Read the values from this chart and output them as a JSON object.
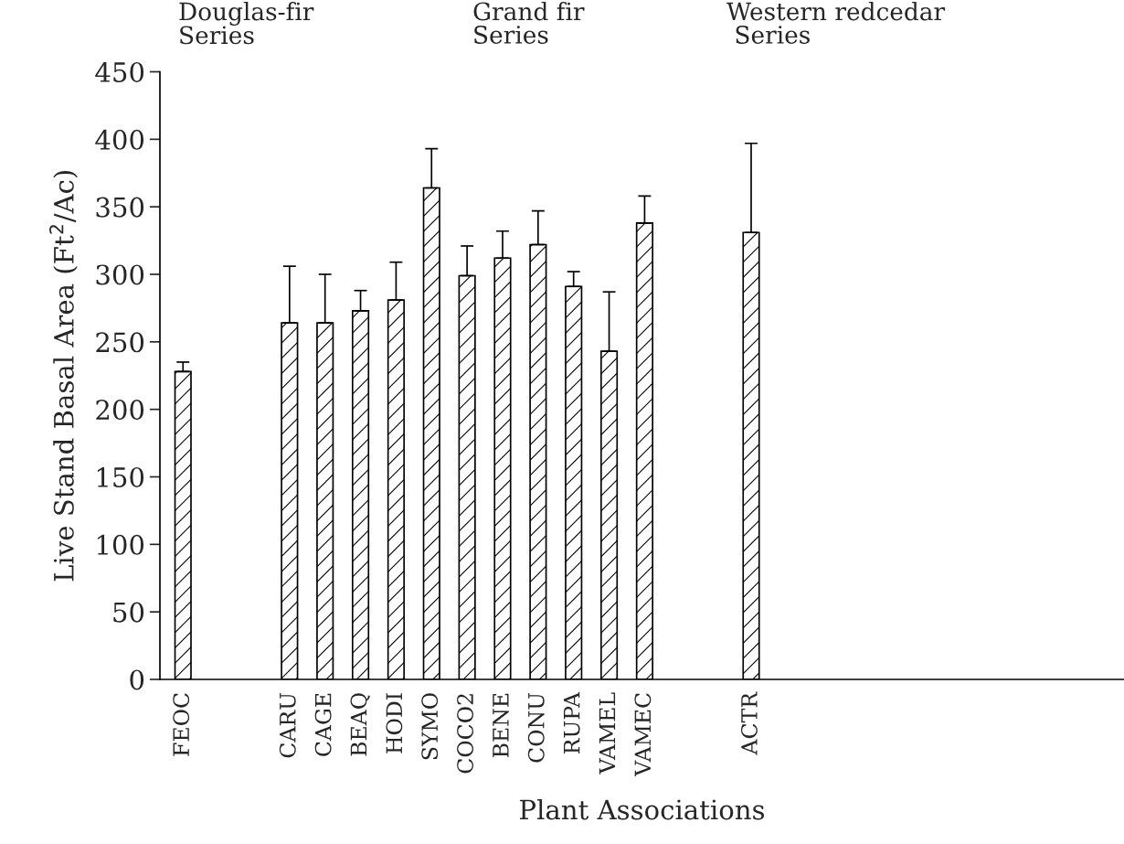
{
  "chart_data": {
    "type": "bar",
    "xlabel": "Plant Associations",
    "ylabel": "Live Stand Basal Area (Ft$^{2}$/Ac)",
    "categories": [
      "FEOC",
      null,
      null,
      "CARU",
      "CAGE",
      "BEAQ",
      "HODI",
      "SYMO",
      "COCO2",
      "BENE",
      "CONU",
      "RUPA",
      "VAMEL",
      "VAMEC",
      null,
      null,
      "ACTR",
      null,
      null,
      null,
      null,
      null,
      null,
      null,
      null,
      null,
      null
    ],
    "values": [
      228,
      null,
      null,
      264,
      264,
      273,
      281,
      364,
      299,
      312,
      322,
      291,
      243,
      338,
      null,
      null,
      331,
      null,
      null,
      null,
      null,
      null,
      null,
      null,
      null,
      null,
      null
    ],
    "errors": [
      [
        228,
        235
      ],
      null,
      null,
      [
        264,
        306
      ],
      [
        264,
        300
      ],
      [
        273,
        288
      ],
      [
        281,
        309
      ],
      [
        364,
        393
      ],
      [
        299,
        321
      ],
      [
        312,
        332
      ],
      [
        322,
        347
      ],
      [
        291,
        302
      ],
      [
        243,
        287
      ],
      [
        338,
        358
      ],
      null,
      null,
      [
        331,
        397
      ],
      null,
      null,
      null,
      null,
      null,
      null,
      null,
      null,
      null,
      null
    ],
    "color": "#000000",
    "ylim": [
      0,
      450
    ],
    "yticks": [
      0,
      50,
      100,
      150,
      200,
      250,
      300,
      350,
      400,
      450
    ],
    "annotations": [
      "Douglas-fir\nSeries",
      "Grand fir\nSeries",
      "Western redcedar\n Series"
    ],
    "grid": false,
    "legend": false
  }
}
